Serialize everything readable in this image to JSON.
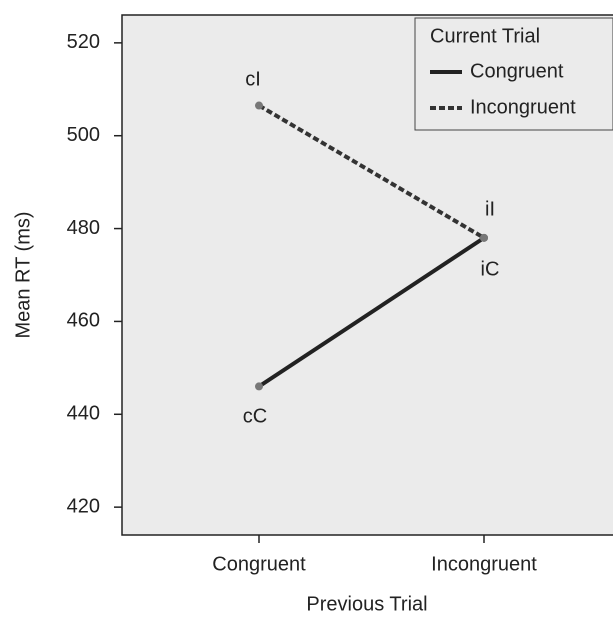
{
  "chart_data": {
    "type": "line",
    "x_label": "Previous Trial",
    "y_label": "Mean RT (ms)",
    "categories": [
      "Congruent",
      "Incongruent"
    ],
    "series": [
      {
        "name": "Congruent",
        "color": "#222222",
        "line_style": "solid",
        "values": [
          446,
          478
        ]
      },
      {
        "name": "Incongruent",
        "color": "#333333",
        "line_style": "dashed",
        "values": [
          506.5,
          478
        ]
      }
    ],
    "legend_title": "Current Trial",
    "legend_position": "upper right",
    "annotations": [
      "cI",
      "iI",
      "cC",
      "iC"
    ],
    "ylim": [
      414,
      526
    ],
    "yticks": [
      420,
      440,
      460,
      480,
      500,
      520
    ]
  }
}
